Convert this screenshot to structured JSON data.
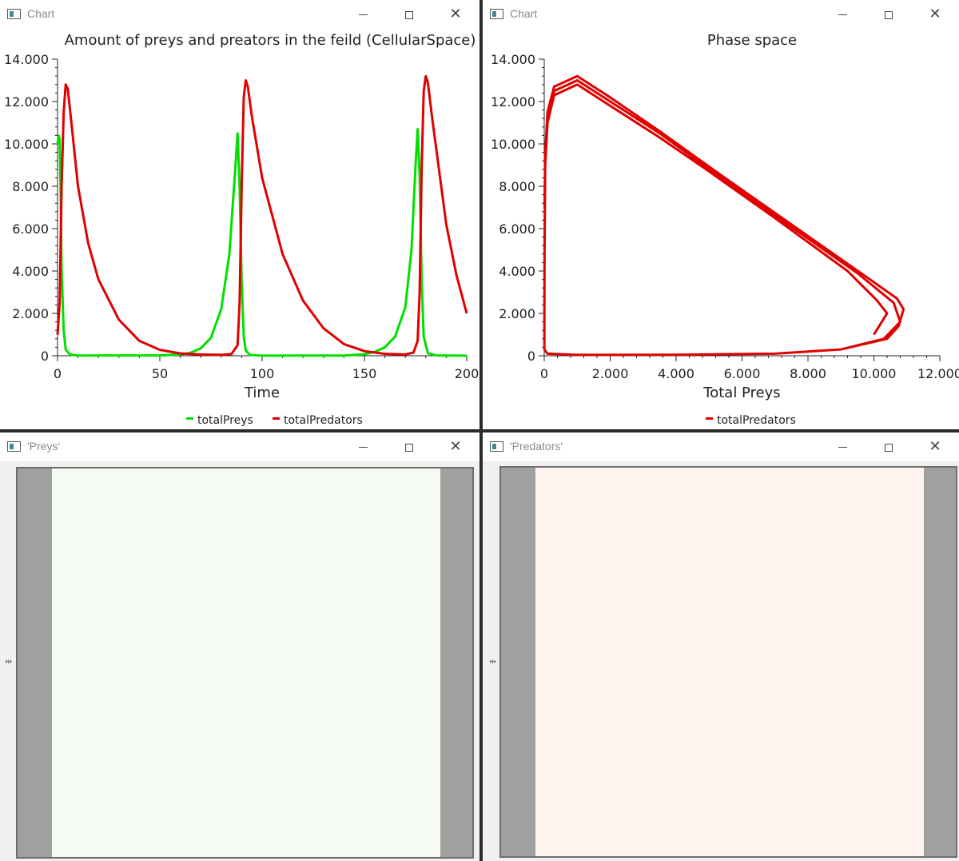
{
  "windows": {
    "chart1": {
      "title": "Chart"
    },
    "chart2": {
      "title": "Chart"
    },
    "preys": {
      "title": "'Preys'"
    },
    "predators": {
      "title": "'Predators'"
    }
  },
  "controls": {
    "minimize": "—",
    "maximize": "☐",
    "close": "✕"
  },
  "colors": {
    "prey": "#00e000",
    "predator": "#e00000",
    "prey_field": "#f5fbf3",
    "predator_field": "#fff4f0",
    "frame_gray": "#a0a0a0"
  },
  "chart_data": [
    {
      "type": "line",
      "title": "Amount of preys and preators in the feild (CellularSpace)",
      "xlabel": "Time",
      "ylabel": "",
      "xlim": [
        0,
        200
      ],
      "ylim": [
        0,
        14000
      ],
      "x_ticks": [
        "0",
        "50",
        "100",
        "150",
        "200"
      ],
      "y_ticks": [
        "0",
        "2.000",
        "4.000",
        "6.000",
        "8.000",
        "10.000",
        "12.000",
        "14.000"
      ],
      "legend": "bottom-center",
      "series": [
        {
          "name": "totalPreys",
          "color": "#00e000",
          "points": [
            [
              0,
              10000
            ],
            [
              0.5,
              10400
            ],
            [
              1,
              10200
            ],
            [
              1.5,
              8000
            ],
            [
              2,
              4000
            ],
            [
              3,
              1200
            ],
            [
              4,
              300
            ],
            [
              6,
              60
            ],
            [
              10,
              10
            ],
            [
              50,
              15
            ],
            [
              60,
              60
            ],
            [
              65,
              140
            ],
            [
              70,
              350
            ],
            [
              75,
              850
            ],
            [
              80,
              2200
            ],
            [
              84,
              4800
            ],
            [
              87,
              9000
            ],
            [
              88,
              10500
            ],
            [
              89,
              8000
            ],
            [
              90,
              3500
            ],
            [
              91,
              900
            ],
            [
              92,
              250
            ],
            [
              94,
              40
            ],
            [
              100,
              5
            ],
            [
              140,
              10
            ],
            [
              150,
              70
            ],
            [
              155,
              180
            ],
            [
              160,
              400
            ],
            [
              165,
              900
            ],
            [
              170,
              2300
            ],
            [
              173,
              5000
            ],
            [
              175,
              9000
            ],
            [
              176,
              10700
            ],
            [
              177,
              8500
            ],
            [
              178,
              3500
            ],
            [
              179,
              900
            ],
            [
              181,
              120
            ],
            [
              185,
              15
            ],
            [
              200,
              5
            ]
          ]
        },
        {
          "name": "totalPredators",
          "color": "#e00000",
          "points": [
            [
              0,
              1000
            ],
            [
              1,
              2500
            ],
            [
              2,
              8000
            ],
            [
              3,
              11500
            ],
            [
              4,
              12800
            ],
            [
              5,
              12600
            ],
            [
              7,
              10800
            ],
            [
              10,
              8000
            ],
            [
              15,
              5300
            ],
            [
              20,
              3600
            ],
            [
              30,
              1700
            ],
            [
              40,
              700
            ],
            [
              50,
              280
            ],
            [
              60,
              110
            ],
            [
              70,
              60
            ],
            [
              80,
              40
            ],
            [
              85,
              80
            ],
            [
              88,
              500
            ],
            [
              89,
              2500
            ],
            [
              90,
              8000
            ],
            [
              91,
              12200
            ],
            [
              92,
              13000
            ],
            [
              93,
              12700
            ],
            [
              95,
              11300
            ],
            [
              100,
              8400
            ],
            [
              110,
              4800
            ],
            [
              120,
              2600
            ],
            [
              130,
              1300
            ],
            [
              140,
              550
            ],
            [
              150,
              220
            ],
            [
              160,
              90
            ],
            [
              170,
              60
            ],
            [
              174,
              150
            ],
            [
              176,
              700
            ],
            [
              177,
              3000
            ],
            [
              178,
              9000
            ],
            [
              179,
              12500
            ],
            [
              180,
              13200
            ],
            [
              181,
              12900
            ],
            [
              183,
              11300
            ],
            [
              190,
              6200
            ],
            [
              195,
              3800
            ],
            [
              200,
              2000
            ]
          ]
        }
      ]
    },
    {
      "type": "line",
      "title": "Phase space",
      "xlabel": "Total Preys",
      "ylabel": "",
      "xlim": [
        0,
        12000
      ],
      "ylim": [
        0,
        14000
      ],
      "x_ticks": [
        "0",
        "2.000",
        "4.000",
        "6.000",
        "8.000",
        "10.000",
        "12.000"
      ],
      "y_ticks": [
        "0",
        "2.000",
        "4.000",
        "6.000",
        "8.000",
        "10.000",
        "12.000",
        "14.000"
      ],
      "legend": "bottom-center",
      "series": [
        {
          "name": "totalPredators",
          "color": "#e00000",
          "points": [
            [
              10000,
              1000
            ],
            [
              10400,
              2000
            ],
            [
              10100,
              2600
            ],
            [
              9200,
              4000
            ],
            [
              7000,
              6500
            ],
            [
              5000,
              8700
            ],
            [
              3500,
              10300
            ],
            [
              2000,
              11800
            ],
            [
              1000,
              12800
            ],
            [
              300,
              12300
            ],
            [
              100,
              11000
            ],
            [
              30,
              9000
            ],
            [
              10,
              5000
            ],
            [
              5,
              2000
            ],
            [
              5,
              300
            ],
            [
              100,
              100
            ],
            [
              1000,
              40
            ],
            [
              4000,
              50
            ],
            [
              7000,
              100
            ],
            [
              9000,
              300
            ],
            [
              10300,
              800
            ],
            [
              10800,
              1600
            ],
            [
              10600,
              2500
            ],
            [
              9500,
              3900
            ],
            [
              7200,
              6400
            ],
            [
              5100,
              8700
            ],
            [
              3500,
              10500
            ],
            [
              1900,
              12100
            ],
            [
              1000,
              13000
            ],
            [
              300,
              12500
            ],
            [
              100,
              11200
            ],
            [
              30,
              9200
            ],
            [
              10,
              5000
            ],
            [
              5,
              2000
            ],
            [
              5,
              300
            ],
            [
              100,
              100
            ],
            [
              1000,
              40
            ],
            [
              4000,
              50
            ],
            [
              7000,
              100
            ],
            [
              9000,
              300
            ],
            [
              10400,
              800
            ],
            [
              10750,
              1400
            ],
            [
              10900,
              2200
            ],
            [
              10700,
              2700
            ],
            [
              9700,
              3800
            ],
            [
              7400,
              6300
            ],
            [
              5200,
              8700
            ],
            [
              3500,
              10600
            ],
            [
              1900,
              12300
            ],
            [
              1000,
              13200
            ],
            [
              300,
              12700
            ],
            [
              100,
              11500
            ],
            [
              30,
              9500
            ],
            [
              10,
              7000
            ]
          ]
        }
      ]
    }
  ]
}
